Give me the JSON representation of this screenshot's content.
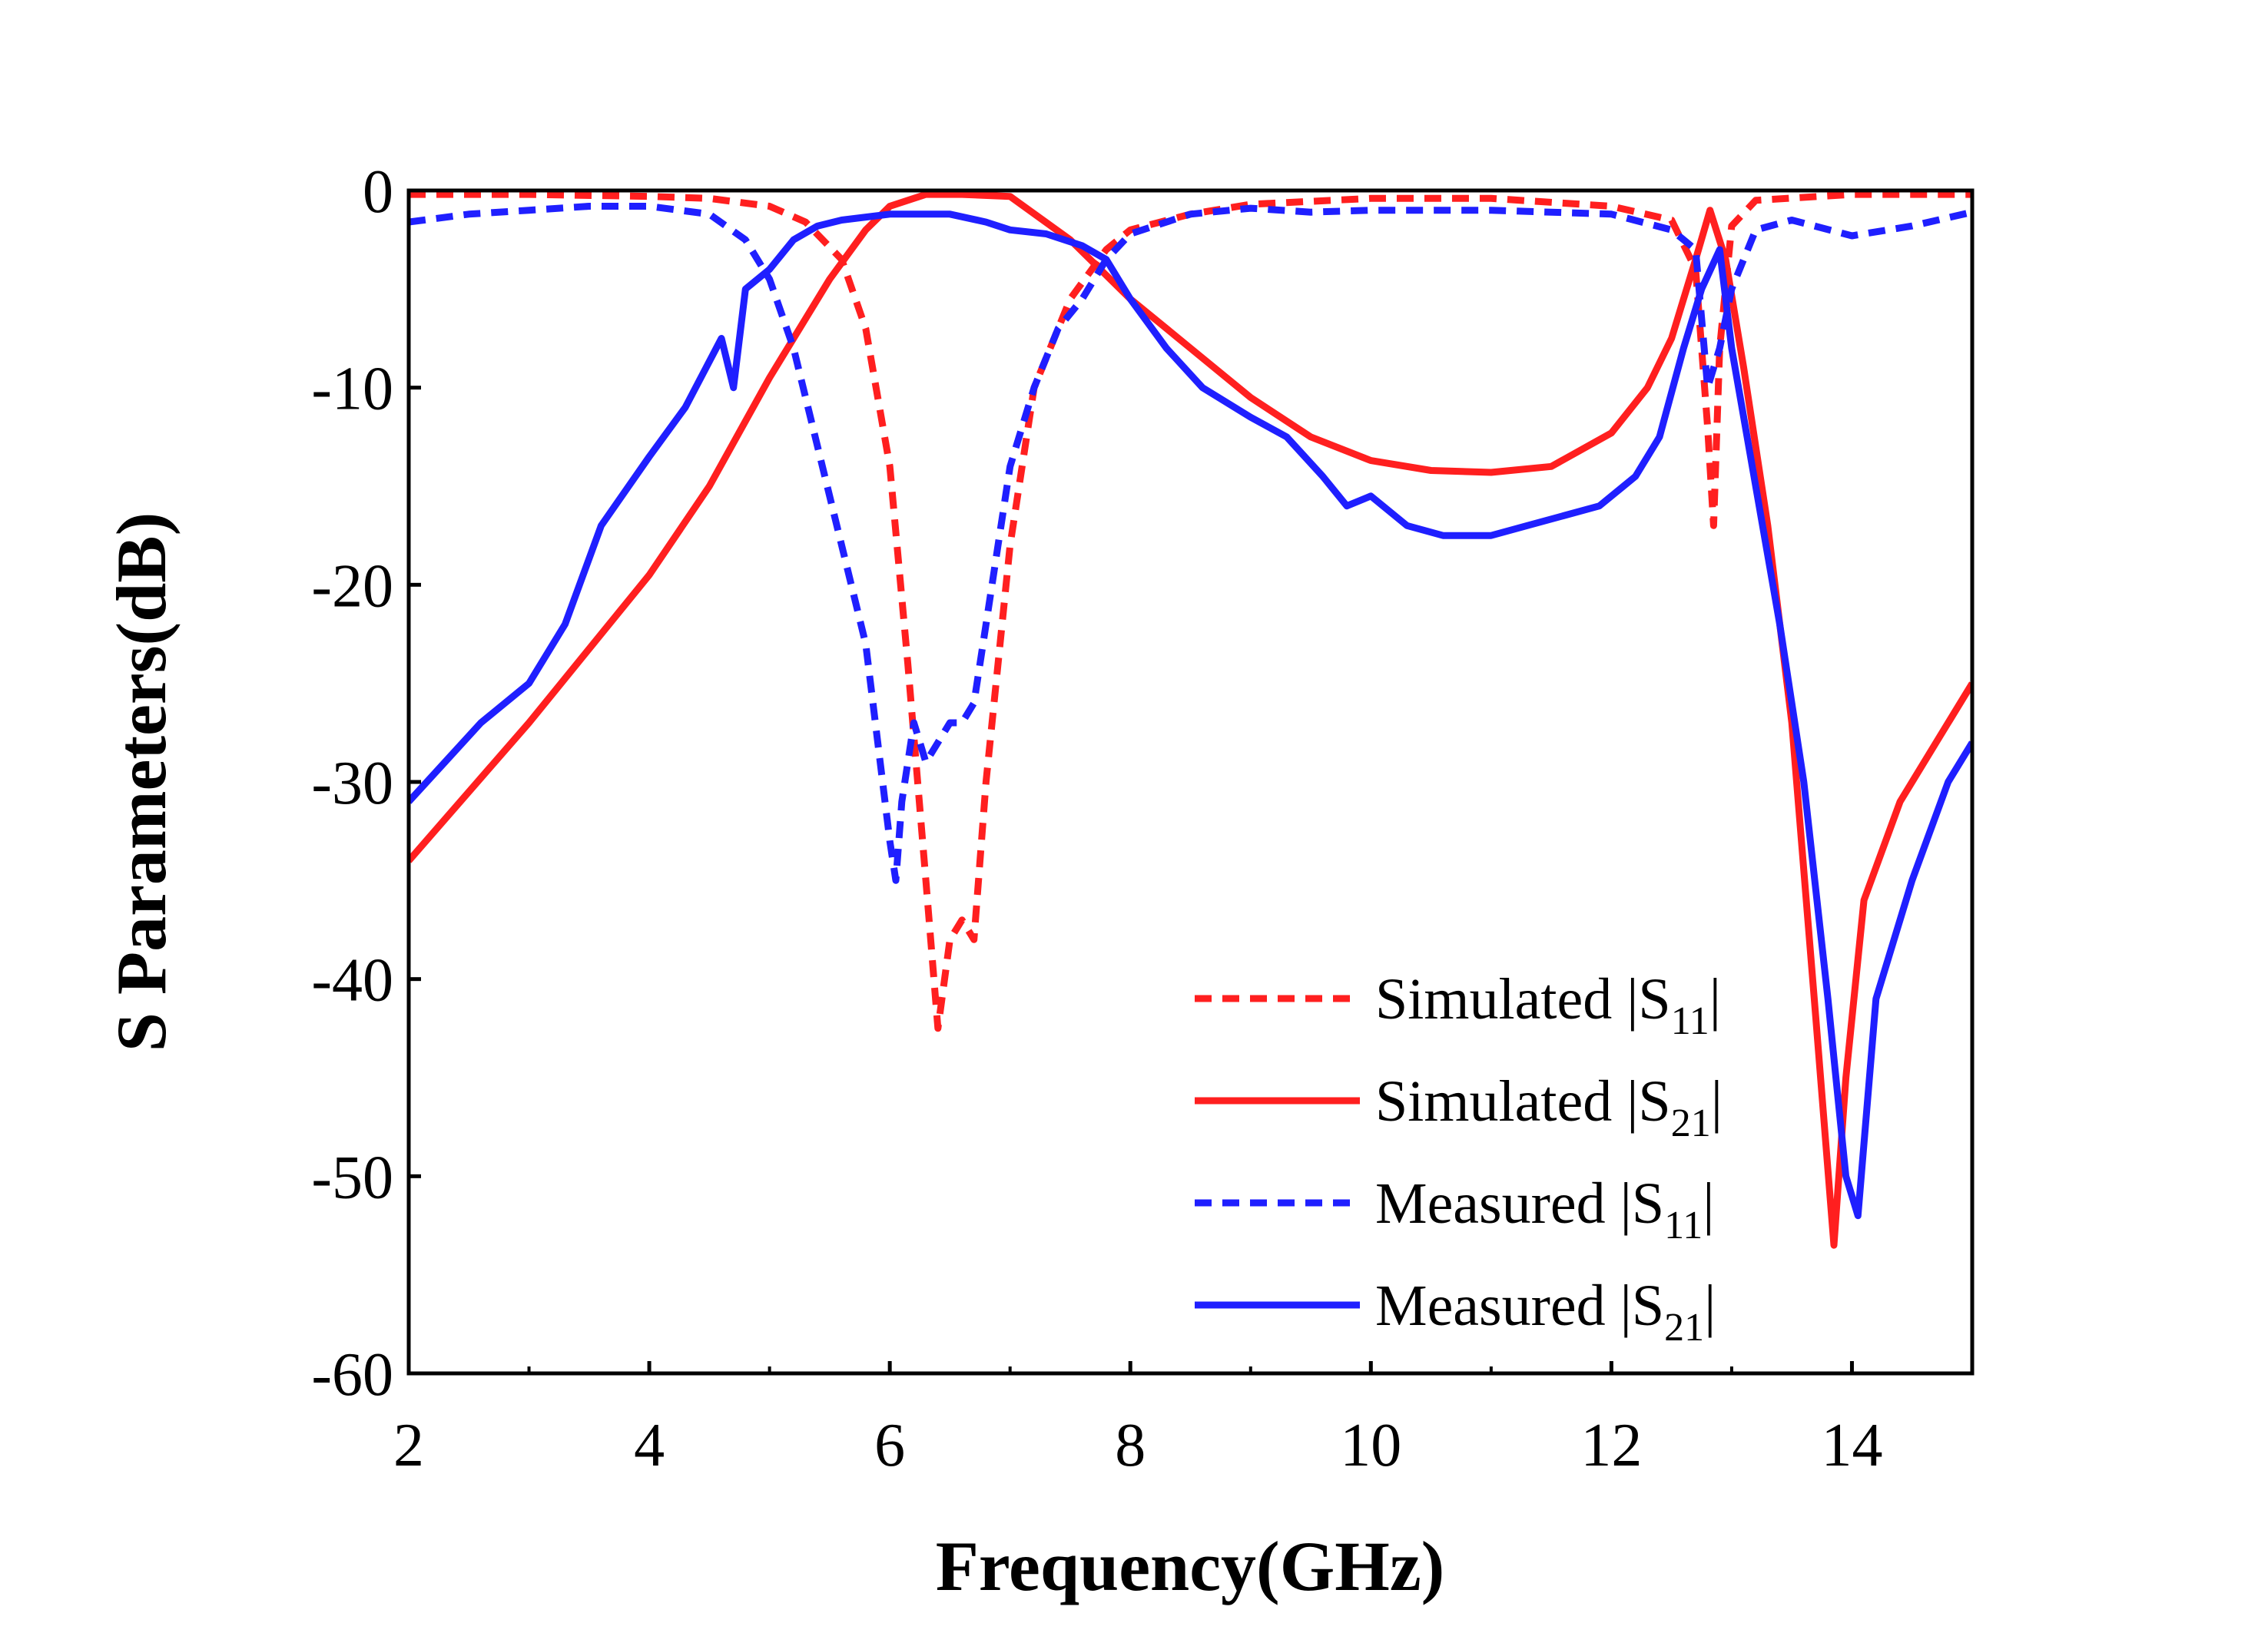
{
  "chart_data": {
    "type": "line",
    "title": "",
    "xlabel": "Frequency(GHz)",
    "ylabel": "S Parameters(dB)",
    "xlim": [
      2,
      15
    ],
    "ylim": [
      -60,
      0
    ],
    "xticks": [
      2,
      4,
      6,
      8,
      10,
      12,
      14
    ],
    "xtick_labels": [
      "2",
      "4",
      "6",
      "8",
      "10",
      "12",
      "14"
    ],
    "yticks": [
      0,
      -10,
      -20,
      -30,
      -40,
      -50,
      -60
    ],
    "ytick_labels": [
      "0",
      "-10",
      "-20",
      "-30",
      "-40",
      "-50",
      "-60"
    ],
    "grid": false,
    "legend_position": "bottom-right",
    "series": [
      {
        "name": "Simulated |S11|",
        "legend_main": "Simulated |S",
        "legend_sub": "11",
        "legend_tail": "|",
        "color": "#ff1f1f",
        "dash": "dashed",
        "x": [
          2,
          3,
          4,
          4.5,
          5,
          5.3,
          5.6,
          5.8,
          6.0,
          6.15,
          6.3,
          6.4,
          6.5,
          6.6,
          6.7,
          6.8,
          7.0,
          7.2,
          7.5,
          7.8,
          8.0,
          8.5,
          9,
          10,
          11,
          12,
          12.5,
          12.7,
          12.8,
          12.85,
          12.9,
          13.0,
          13.2,
          14,
          15
        ],
        "y": [
          -0.2,
          -0.2,
          -0.3,
          -0.4,
          -0.8,
          -1.6,
          -3.5,
          -7,
          -14,
          -24,
          -35,
          -42.5,
          -38,
          -37,
          -38,
          -30,
          -18,
          -10,
          -5.5,
          -3,
          -2,
          -1.2,
          -0.7,
          -0.4,
          -0.4,
          -0.8,
          -1.5,
          -4,
          -12,
          -17,
          -8,
          -1.8,
          -0.5,
          -0.2,
          -0.2
        ]
      },
      {
        "name": "Simulated |S21|",
        "legend_main": "Simulated |S",
        "legend_sub": "21",
        "legend_tail": "|",
        "color": "#ff1f1f",
        "dash": "solid",
        "x": [
          2,
          3,
          4,
          4.5,
          5,
          5.5,
          5.8,
          6.0,
          6.3,
          6.6,
          7.0,
          7.5,
          8,
          8.5,
          9,
          9.5,
          10,
          10.5,
          11,
          11.5,
          12,
          12.3,
          12.5,
          12.7,
          12.82,
          12.95,
          13.1,
          13.3,
          13.5,
          13.7,
          13.85,
          13.95,
          14.1,
          14.4,
          14.7,
          15
        ],
        "y": [
          -34,
          -27,
          -19.5,
          -15,
          -9.5,
          -4.5,
          -2,
          -0.8,
          -0.2,
          -0.2,
          -0.3,
          -2.5,
          -5.5,
          -8,
          -10.5,
          -12.5,
          -13.7,
          -14.2,
          -14.3,
          -14,
          -12.3,
          -10,
          -7.5,
          -3.5,
          -1,
          -3.5,
          -9,
          -17,
          -27,
          -42,
          -53.5,
          -45,
          -36,
          -31,
          -28,
          -25
        ]
      },
      {
        "name": "Measured |S11|",
        "legend_main": "Measured |S",
        "legend_sub": "11",
        "legend_tail": "|",
        "color": "#1f1fff",
        "dash": "dashed",
        "x": [
          2,
          2.5,
          3,
          3.5,
          4,
          4.5,
          4.8,
          5.0,
          5.2,
          5.4,
          5.6,
          5.8,
          5.9,
          6.0,
          6.05,
          6.1,
          6.2,
          6.3,
          6.4,
          6.5,
          6.6,
          6.7,
          6.8,
          6.9,
          7.0,
          7.2,
          7.4,
          7.6,
          7.8,
          8.0,
          8.5,
          9,
          9.5,
          10,
          11,
          12,
          12.5,
          12.7,
          12.8,
          12.9,
          13.0,
          13.2,
          13.5,
          14,
          14.5,
          15
        ],
        "y": [
          -1.6,
          -1.2,
          -1,
          -0.8,
          -0.8,
          -1.2,
          -2.5,
          -4.5,
          -8,
          -13,
          -18,
          -23,
          -28,
          -33,
          -35,
          -31,
          -27,
          -29,
          -28,
          -27,
          -27,
          -26,
          -22,
          -18,
          -14,
          -10,
          -7,
          -5.5,
          -3.5,
          -2.2,
          -1.2,
          -0.9,
          -1.1,
          -1.0,
          -1.0,
          -1.2,
          -2,
          -3,
          -10,
          -8,
          -5,
          -2,
          -1.5,
          -2.3,
          -1.8,
          -1.1
        ]
      },
      {
        "name": "Measured |S21|",
        "legend_main": "Measured |S",
        "legend_sub": "21",
        "legend_tail": "|",
        "color": "#1f1fff",
        "dash": "solid",
        "x": [
          2,
          2.3,
          2.6,
          3,
          3.3,
          3.6,
          4,
          4.3,
          4.6,
          4.7,
          4.8,
          5.0,
          5.2,
          5.4,
          5.6,
          6.0,
          6.5,
          6.8,
          7.0,
          7.3,
          7.6,
          7.8,
          8.0,
          8.3,
          8.6,
          9.0,
          9.3,
          9.6,
          9.8,
          10.0,
          10.3,
          10.6,
          11.0,
          11.3,
          11.6,
          11.9,
          12.2,
          12.4,
          12.6,
          12.75,
          12.9,
          13.0,
          13.2,
          13.4,
          13.6,
          13.8,
          13.95,
          14.05,
          14.2,
          14.5,
          14.8,
          15
        ],
        "y": [
          -31,
          -29,
          -27,
          -25,
          -22,
          -17,
          -13.5,
          -11,
          -7.5,
          -10,
          -5,
          -4,
          -2.5,
          -1.8,
          -1.5,
          -1.2,
          -1.2,
          -1.6,
          -2,
          -2.2,
          -2.8,
          -3.5,
          -5.5,
          -8,
          -10,
          -11.5,
          -12.5,
          -14.5,
          -16,
          -15.5,
          -17,
          -17.5,
          -17.5,
          -17,
          -16.5,
          -16,
          -14.5,
          -12.5,
          -8,
          -5,
          -3,
          -8,
          -15,
          -22,
          -30,
          -41,
          -50,
          -52,
          -41,
          -35,
          -30,
          -28
        ]
      }
    ]
  }
}
